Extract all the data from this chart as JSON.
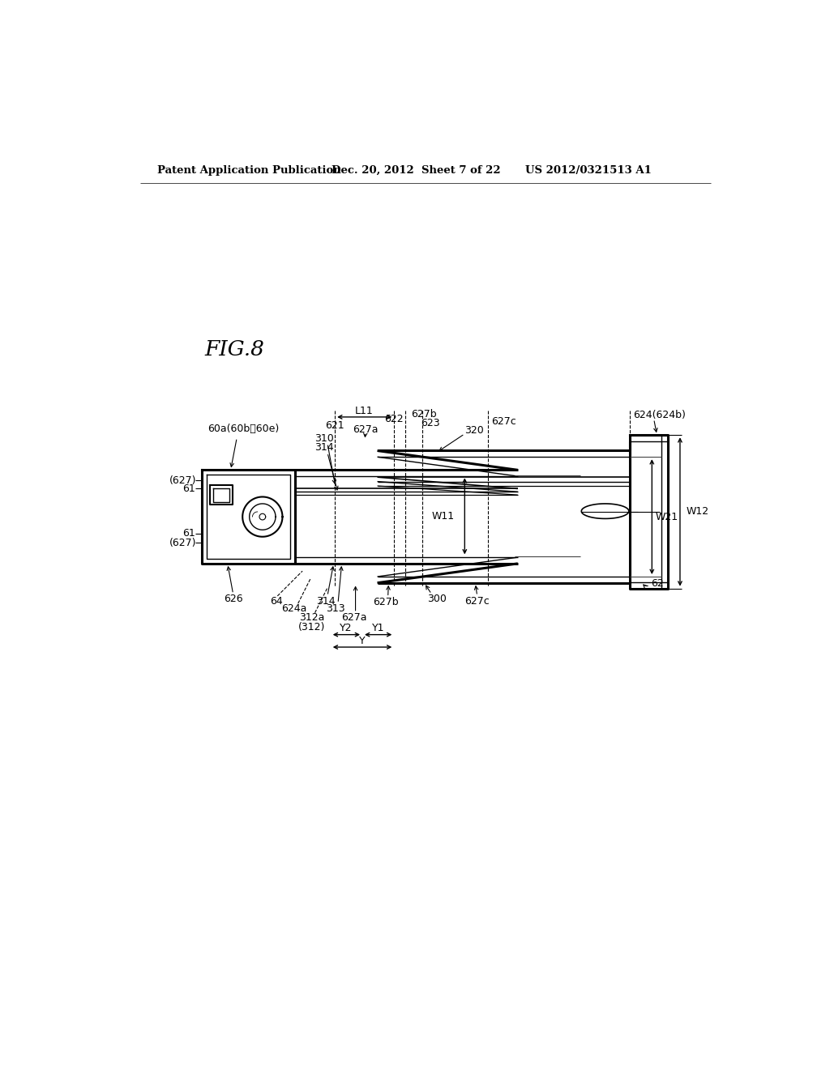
{
  "bg_color": "#ffffff",
  "header_left": "Patent Application Publication",
  "header_mid": "Dec. 20, 2012  Sheet 7 of 22",
  "header_right": "US 2012/0321513 A1",
  "fig_label": "FIG.8"
}
